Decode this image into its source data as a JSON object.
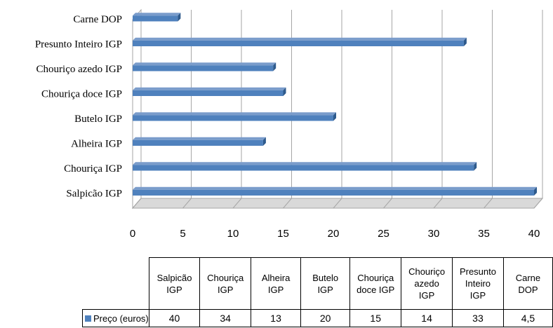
{
  "chart_data": {
    "type": "bar",
    "orientation": "horizontal",
    "categories": [
      "Salpicão IGP",
      "Chouriça IGP",
      "Alheira IGP",
      "Butelo IGP",
      "Chouriça doce IGP",
      "Chouriço azedo IGP",
      "Presunto Inteiro IGP",
      "Carne DOP"
    ],
    "table_headers": [
      [
        "Salpicão",
        "IGP"
      ],
      [
        "Chouriça",
        "IGP"
      ],
      [
        "Alheira",
        "IGP"
      ],
      [
        "Butelo",
        "IGP"
      ],
      [
        "Chouriça",
        "doce IGP"
      ],
      [
        "Chouriço",
        "azedo",
        "IGP"
      ],
      [
        "Presunto",
        "Inteiro",
        "IGP"
      ],
      [
        "Carne",
        "DOP"
      ]
    ],
    "series": [
      {
        "name": "Preço (euros)",
        "values": [
          40,
          34,
          13,
          20,
          15,
          14,
          33,
          4.5
        ]
      }
    ],
    "value_labels": [
      "40",
      "34",
      "13",
      "20",
      "15",
      "14",
      "33",
      "4,5"
    ],
    "xlim": [
      0,
      40
    ],
    "x_ticks": [
      0,
      5,
      10,
      15,
      20,
      25,
      30,
      35,
      40
    ],
    "title": "",
    "xlabel": "",
    "ylabel": "",
    "grid": true,
    "legend": "data-table",
    "style": "3d",
    "colors": {
      "bar": "#4F81BD",
      "bar_top": "#7A9CCB",
      "bar_side": "#2E5A8C",
      "grid": "#A6A6A6",
      "floor": "#D9D9D9"
    }
  }
}
